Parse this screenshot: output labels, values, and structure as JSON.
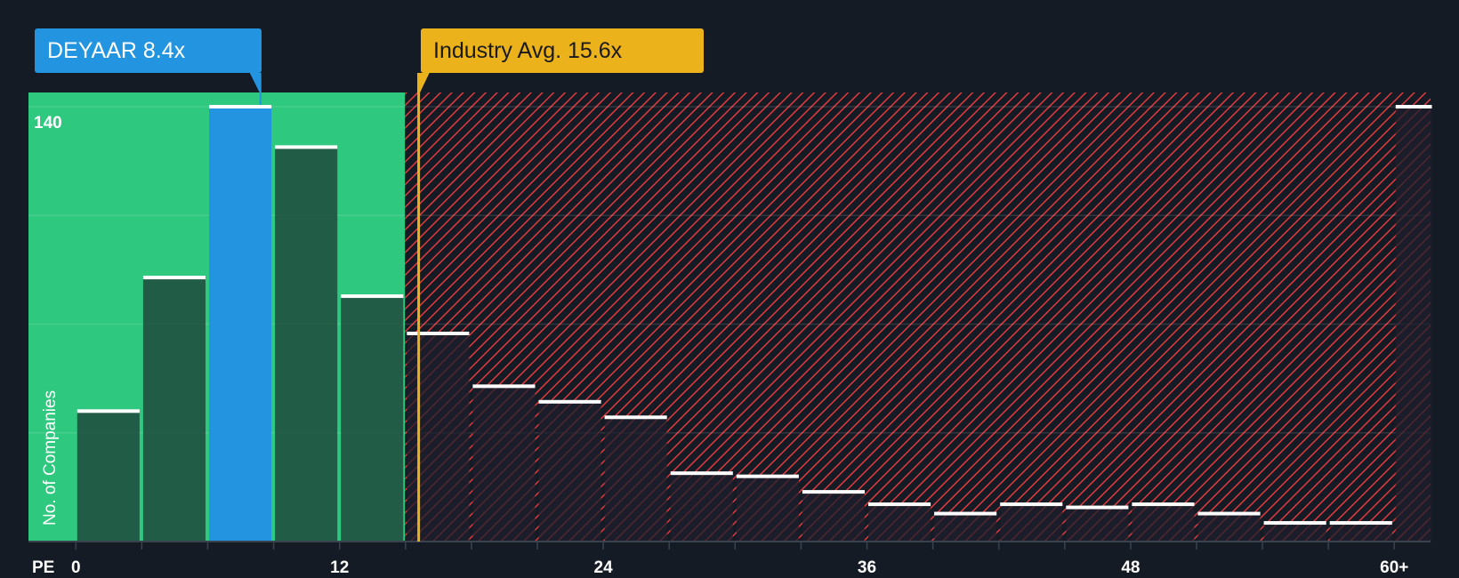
{
  "chart_data": {
    "type": "bar",
    "title": "",
    "xlabel": "PE",
    "ylabel": "No. of Companies",
    "bin_width": 3,
    "bins": [
      "0-3",
      "3-6",
      "6-9",
      "9-12",
      "12-15",
      "15-18",
      "18-21",
      "21-24",
      "24-27",
      "27-30",
      "30-33",
      "33-36",
      "36-39",
      "39-42",
      "42-45",
      "45-48",
      "48-51",
      "51-54",
      "54-57",
      "57-60",
      "60+"
    ],
    "values": [
      42,
      85,
      140,
      127,
      79,
      67,
      50,
      45,
      40,
      22,
      21,
      16,
      12,
      9,
      12,
      11,
      12,
      9,
      6,
      6,
      140
    ],
    "highlight_bin": 2,
    "x_ticks": [
      {
        "value": 0,
        "label": "0"
      },
      {
        "value": 12,
        "label": "12"
      },
      {
        "value": 24,
        "label": "24"
      },
      {
        "value": 36,
        "label": "36"
      },
      {
        "value": 48,
        "label": "48"
      },
      {
        "value": 60,
        "label": "60+"
      }
    ],
    "y_tick_label": "140",
    "y_gridlines": [
      35,
      70,
      105,
      140
    ],
    "ylim": [
      0,
      140
    ],
    "subject": {
      "label": "DEYAAR 8.4x",
      "value": 8.4,
      "color": "#2394e0"
    },
    "industry": {
      "label": "Industry Avg. 15.6x",
      "value": 15.6,
      "color": "#ebb21b"
    },
    "colors": {
      "background": "#151b24",
      "undervalued": "#2ec87e",
      "overvalued_hatch": "#e03a3e",
      "bar": "#1f4a3c"
    }
  }
}
